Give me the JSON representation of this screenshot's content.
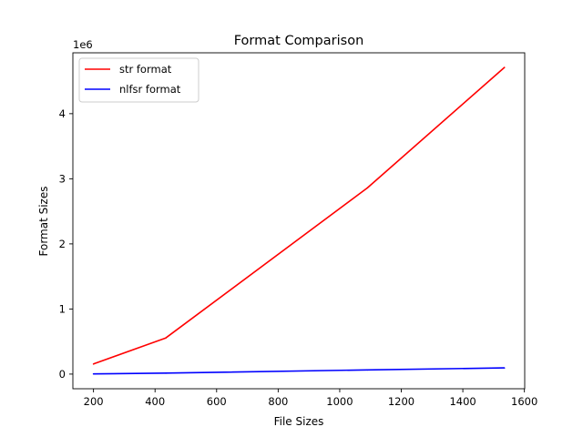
{
  "chart_data": {
    "type": "line",
    "title": "Format Comparison",
    "xlabel": "File Sizes",
    "ylabel": "Format Sizes",
    "y_offset_label": "1e6",
    "xlim": [
      133,
      1601
    ],
    "ylim": [
      -225000,
      4935000
    ],
    "x_ticks": [
      200,
      400,
      600,
      800,
      1000,
      1200,
      1400,
      1600
    ],
    "y_ticks": [
      0,
      1,
      2,
      3,
      4
    ],
    "y_tick_scale": 1000000,
    "grid": false,
    "legend_position": "upper left",
    "series": [
      {
        "name": "str format",
        "color": "#ff0000",
        "x": [
          200,
          435,
          1090,
          1535
        ],
        "y": [
          155000,
          555000,
          2860000,
          4710000
        ]
      },
      {
        "name": "nlfsr format",
        "color": "#0000ff",
        "x": [
          200,
          435,
          1090,
          1535
        ],
        "y": [
          3000,
          15000,
          64000,
          95000
        ]
      }
    ]
  }
}
